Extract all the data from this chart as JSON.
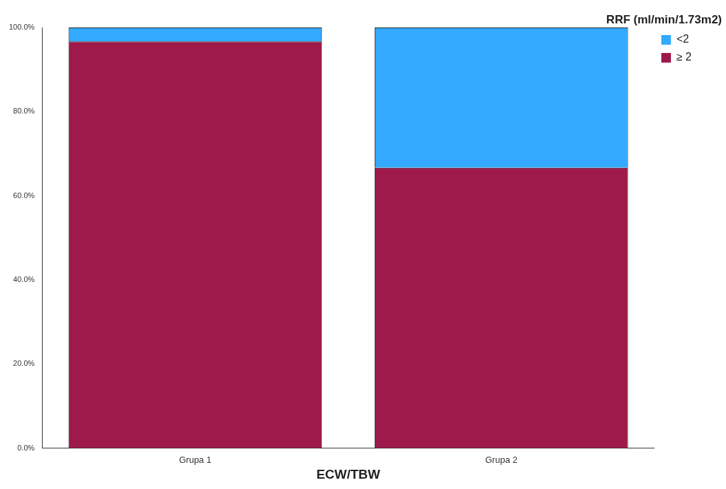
{
  "chart_data": {
    "type": "bar",
    "stacked": true,
    "xlabel": "ECW/TBW",
    "legend_title": "RRF (ml/min/1.73m2)",
    "legend": "top right",
    "grid": false,
    "categories": [
      "Grupa 1",
      "Grupa 2"
    ],
    "series": [
      {
        "name": "≥ 2",
        "color": "#9e1a4a",
        "values": [
          96.7,
          66.7
        ]
      },
      {
        "name": "<2",
        "color": "#33aaff",
        "values": [
          3.3,
          33.3
        ]
      }
    ],
    "ylim": [
      0,
      100
    ],
    "yticks": [
      {
        "value": 0,
        "label": "0.0%"
      },
      {
        "value": 20,
        "label": "20.0%"
      },
      {
        "value": 40,
        "label": "40.0%"
      },
      {
        "value": 60,
        "label": "60.0%"
      },
      {
        "value": 80,
        "label": "80.0%"
      },
      {
        "value": 100,
        "label": "100.0%"
      }
    ]
  }
}
